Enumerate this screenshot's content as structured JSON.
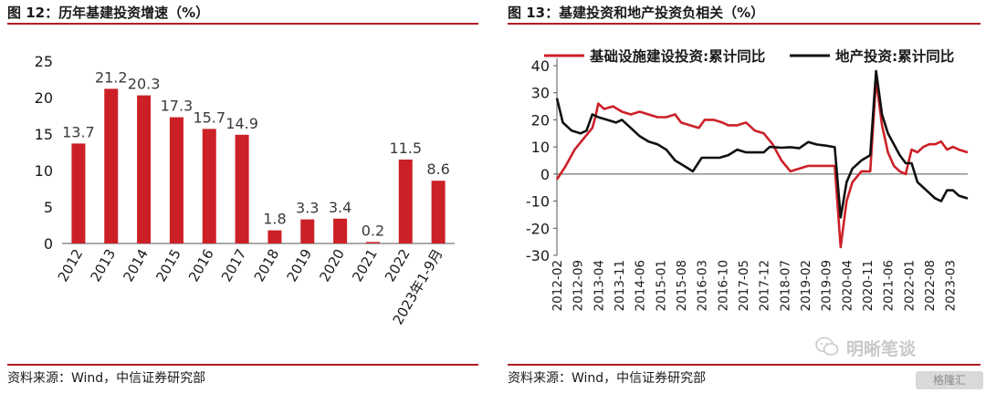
{
  "left_panel": {
    "title": "图 12：历年基建投资增速（%）",
    "source": "资料来源：Wind，中信证券研究部"
  },
  "right_panel": {
    "title": "图 13：基建投资和地产投资负相关（%）",
    "source": "资料来源：Wind，中信证券研究部"
  },
  "watermark": {
    "text": "明晰笔谈",
    "icon": "wechat-icon"
  },
  "corner_mark": {
    "text": "格隆汇"
  },
  "colors": {
    "accent": "#b01e23",
    "bar": "#cc2027",
    "series_red": "#cc2027",
    "series_black": "#111111"
  },
  "chart_data": [
    {
      "type": "bar",
      "categories": [
        "2012",
        "2013",
        "2014",
        "2015",
        "2016",
        "2017",
        "2018",
        "2019",
        "2020",
        "2021",
        "2022",
        "2023年1-9月"
      ],
      "values": [
        13.7,
        21.2,
        20.3,
        17.3,
        15.7,
        14.9,
        1.8,
        3.3,
        3.4,
        0.2,
        11.5,
        8.6
      ],
      "value_labels": [
        "13.7",
        "21.2",
        "20.3",
        "17.3",
        "15.7",
        "14.9",
        "1.8",
        "3.3",
        "3.4",
        "0.2",
        "11.5",
        "8.6"
      ],
      "ylim": [
        0,
        25
      ],
      "yticks": [
        0,
        5,
        10,
        15,
        20,
        25
      ],
      "grid": false,
      "legend": "none"
    },
    {
      "type": "line",
      "x_tick_labels": [
        "2012-02",
        "2012-09",
        "2013-04",
        "2013-11",
        "2014-06",
        "2015-01",
        "2015-08",
        "2016-03",
        "2016-10",
        "2017-05",
        "2017-12",
        "2018-07",
        "2019-02",
        "2019-09",
        "2020-04",
        "2020-11",
        "2021-06",
        "2022-01",
        "2022-08",
        "2023-03"
      ],
      "x_range": [
        "2012-02",
        "2023-09"
      ],
      "ylim": [
        -30,
        40
      ],
      "yticks": [
        -30,
        -20,
        -10,
        0,
        10,
        20,
        30,
        40
      ],
      "grid": false,
      "legend_position": "top",
      "series": [
        {
          "name": "基础设施建设投资:累计同比",
          "color": "#cc2027",
          "points": [
            [
              "2012-02",
              -2
            ],
            [
              "2012-05",
              3
            ],
            [
              "2012-08",
              9
            ],
            [
              "2012-11",
              13
            ],
            [
              "2013-02",
              17
            ],
            [
              "2013-03",
              21
            ],
            [
              "2013-04",
              26
            ],
            [
              "2013-06",
              24
            ],
            [
              "2013-09",
              25
            ],
            [
              "2013-12",
              23
            ],
            [
              "2014-03",
              22
            ],
            [
              "2014-06",
              23
            ],
            [
              "2014-09",
              22
            ],
            [
              "2014-12",
              21
            ],
            [
              "2015-03",
              21
            ],
            [
              "2015-06",
              22
            ],
            [
              "2015-08",
              19
            ],
            [
              "2015-11",
              18
            ],
            [
              "2016-02",
              17
            ],
            [
              "2016-04",
              20
            ],
            [
              "2016-07",
              20
            ],
            [
              "2016-10",
              19
            ],
            [
              "2016-12",
              18
            ],
            [
              "2017-03",
              18
            ],
            [
              "2017-06",
              19
            ],
            [
              "2017-09",
              16
            ],
            [
              "2017-12",
              15
            ],
            [
              "2018-03",
              11
            ],
            [
              "2018-06",
              5
            ],
            [
              "2018-09",
              1
            ],
            [
              "2018-12",
              2
            ],
            [
              "2019-03",
              3
            ],
            [
              "2019-06",
              3
            ],
            [
              "2019-09",
              3
            ],
            [
              "2019-12",
              3
            ],
            [
              "2020-02",
              -27
            ],
            [
              "2020-04",
              -10
            ],
            [
              "2020-06",
              -3
            ],
            [
              "2020-09",
              1
            ],
            [
              "2020-12",
              1
            ],
            [
              "2021-02",
              35
            ],
            [
              "2021-04",
              18
            ],
            [
              "2021-06",
              8
            ],
            [
              "2021-08",
              3
            ],
            [
              "2021-10",
              1
            ],
            [
              "2021-12",
              0
            ],
            [
              "2022-02",
              9
            ],
            [
              "2022-04",
              8
            ],
            [
              "2022-06",
              10
            ],
            [
              "2022-08",
              11
            ],
            [
              "2022-10",
              11
            ],
            [
              "2022-12",
              12
            ],
            [
              "2023-02",
              9
            ],
            [
              "2023-04",
              10
            ],
            [
              "2023-06",
              9
            ],
            [
              "2023-09",
              8
            ]
          ]
        },
        {
          "name": "地产投资:累计同比",
          "color": "#111111",
          "points": [
            [
              "2012-02",
              28
            ],
            [
              "2012-04",
              19
            ],
            [
              "2012-07",
              16
            ],
            [
              "2012-10",
              15
            ],
            [
              "2012-12",
              16
            ],
            [
              "2013-02",
              22
            ],
            [
              "2013-04",
              21
            ],
            [
              "2013-07",
              20
            ],
            [
              "2013-10",
              19
            ],
            [
              "2013-12",
              20
            ],
            [
              "2014-03",
              17
            ],
            [
              "2014-06",
              14
            ],
            [
              "2014-09",
              12
            ],
            [
              "2014-12",
              11
            ],
            [
              "2015-03",
              9
            ],
            [
              "2015-06",
              5
            ],
            [
              "2015-09",
              3
            ],
            [
              "2015-12",
              1
            ],
            [
              "2016-03",
              6
            ],
            [
              "2016-06",
              6
            ],
            [
              "2016-09",
              6
            ],
            [
              "2016-12",
              7
            ],
            [
              "2017-03",
              9
            ],
            [
              "2017-06",
              8
            ],
            [
              "2017-09",
              8
            ],
            [
              "2017-12",
              8
            ],
            [
              "2018-02",
              10
            ],
            [
              "2018-06",
              9.7
            ],
            [
              "2018-09",
              9.9
            ],
            [
              "2018-12",
              9.5
            ],
            [
              "2019-03",
              11.8
            ],
            [
              "2019-06",
              10.9
            ],
            [
              "2019-09",
              10.5
            ],
            [
              "2019-12",
              9.9
            ],
            [
              "2020-02",
              -16
            ],
            [
              "2020-04",
              -3
            ],
            [
              "2020-06",
              2
            ],
            [
              "2020-09",
              5
            ],
            [
              "2020-12",
              7
            ],
            [
              "2021-02",
              38
            ],
            [
              "2021-04",
              22
            ],
            [
              "2021-06",
              15
            ],
            [
              "2021-08",
              11
            ],
            [
              "2021-10",
              7
            ],
            [
              "2021-12",
              4
            ],
            [
              "2022-02",
              4
            ],
            [
              "2022-04",
              -3
            ],
            [
              "2022-06",
              -5
            ],
            [
              "2022-08",
              -7
            ],
            [
              "2022-10",
              -9
            ],
            [
              "2022-12",
              -10
            ],
            [
              "2023-02",
              -6
            ],
            [
              "2023-04",
              -6
            ],
            [
              "2023-06",
              -8
            ],
            [
              "2023-09",
              -9
            ]
          ]
        }
      ]
    }
  ]
}
